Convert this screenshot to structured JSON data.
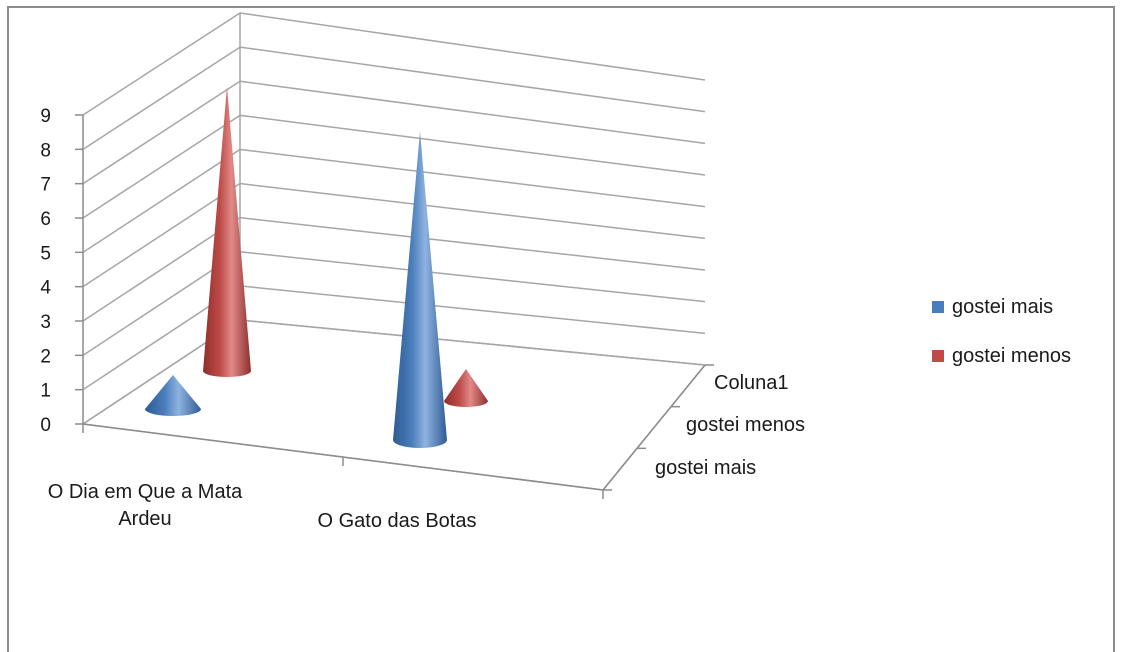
{
  "colors": {
    "blue": "#4a7ebb",
    "red": "#be4b48"
  },
  "chart_data": {
    "type": "bar",
    "subtype": "3d-cone",
    "categories": [
      "O Dia em Que a Mata Ardeu",
      "O Gato das Botas"
    ],
    "category_label_lines": [
      [
        "O Dia em Que a Mata",
        "Ardeu"
      ],
      [
        "O Gato das Botas"
      ]
    ],
    "series_axis_labels": [
      "gostei mais",
      "gostei menos",
      "Coluna1"
    ],
    "series": [
      {
        "name": "gostei mais",
        "color": "#4a7ebb",
        "values": [
          1,
          9
        ]
      },
      {
        "name": "gostei menos",
        "color": "#be4b48",
        "values": [
          9,
          1
        ]
      }
    ],
    "yticks": [
      "0",
      "1",
      "2",
      "3",
      "4",
      "5",
      "6",
      "7",
      "8",
      "9"
    ],
    "ylim": [
      0,
      9
    ],
    "grid": true,
    "legend_position": "right"
  }
}
